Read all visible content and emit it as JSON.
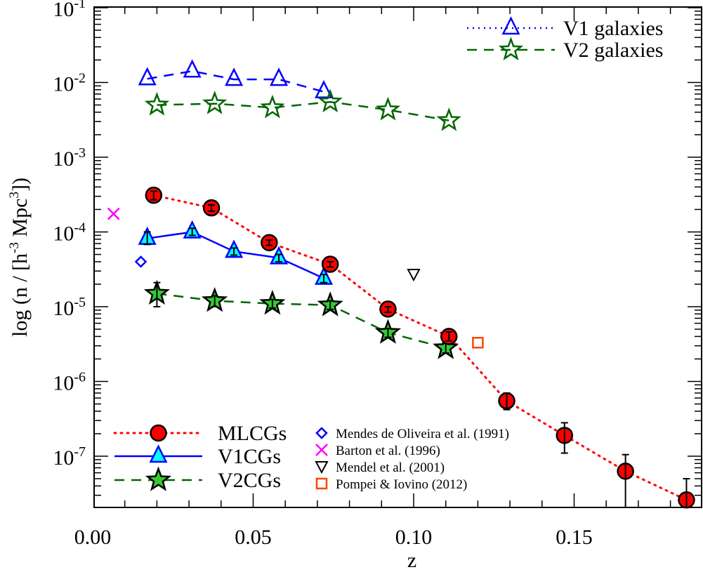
{
  "chart_data": {
    "type": "scatter",
    "title": "",
    "xlabel": "z",
    "ylabel": "log (n / [h",
    "ylabel_parts": [
      "log (n / [h",
      "-3",
      " Mpc",
      "3",
      "])"
    ],
    "xscale": "linear",
    "yscale": "log",
    "xlim": [
      0.0,
      0.19
    ],
    "ylim": [
      2.06e-08,
      0.1
    ],
    "x_ticks": [
      {
        "value": 0.0,
        "label": "0.00"
      },
      {
        "value": 0.05,
        "label": "0.05"
      },
      {
        "value": 0.1,
        "label": "0.10"
      },
      {
        "value": 0.15,
        "label": "0.15"
      }
    ],
    "y_ticks": [
      {
        "value": 0.1,
        "base": "10",
        "exp": "-1"
      },
      {
        "value": 0.01,
        "base": "10",
        "exp": "-2"
      },
      {
        "value": 0.001,
        "base": "10",
        "exp": "-3"
      },
      {
        "value": 0.0001,
        "base": "10",
        "exp": "-4"
      },
      {
        "value": 1e-05,
        "base": "10",
        "exp": "-5"
      },
      {
        "value": 1e-06,
        "base": "10",
        "exp": "-6"
      },
      {
        "value": 1e-07,
        "base": "10",
        "exp": "-7"
      }
    ],
    "grid": false,
    "series": [
      {
        "name": "MLCGs",
        "marker": "circle",
        "line": "dotted",
        "fill": "#ff0000",
        "stroke": "#000000",
        "line_color": "#ff0000",
        "x": [
          0.019,
          0.037,
          0.055,
          0.074,
          0.092,
          0.111,
          0.129,
          0.147,
          0.166,
          0.185
        ],
        "y": [
          0.00031,
          0.00021,
          7.2e-05,
          3.7e-05,
          9.3e-06,
          4e-06,
          5.5e-07,
          1.9e-07,
          6.3e-08,
          2.6e-08
        ],
        "yerr_low": [
          0.00027,
          0.00019,
          6.6e-05,
          3.4e-05,
          8.4e-06,
          3.5e-06,
          4.2e-07,
          1.1e-07,
          2e-08,
          2e-08
        ],
        "yerr_high": [
          0.00035,
          0.00023,
          7.8e-05,
          4e-05,
          1e-05,
          4.6e-06,
          7e-07,
          2.8e-07,
          1.05e-07,
          5e-08
        ]
      },
      {
        "name": "V1CGs",
        "marker": "triangle",
        "line": "solid",
        "fill": "#00ffff",
        "stroke": "#0000ff",
        "line_color": "#0000ff",
        "x": [
          0.017,
          0.031,
          0.044,
          0.058,
          0.072
        ],
        "y": [
          8.2e-05,
          0.0001,
          5.5e-05,
          4.5e-05,
          2.4e-05
        ],
        "yerr_low": [
          6.8e-05,
          9e-05,
          4.9e-05,
          4e-05,
          2.1e-05
        ],
        "yerr_high": [
          0.0001,
          0.000112,
          6.1e-05,
          5e-05,
          2.7e-05
        ]
      },
      {
        "name": "V2CGs",
        "marker": "star",
        "line": "dashed",
        "fill": "#33cc33",
        "stroke": "#000000",
        "line_color": "#006600",
        "x": [
          0.02,
          0.038,
          0.056,
          0.074,
          0.092,
          0.11
        ],
        "y": [
          1.5e-05,
          1.2e-05,
          1.1e-05,
          1.05e-05,
          4.5e-06,
          2.8e-06
        ],
        "yerr_low": [
          1e-05,
          1e-05,
          9.6e-06,
          9.2e-06,
          3.9e-06,
          2.4e-06
        ],
        "yerr_high": [
          2.1e-05,
          1.4e-05,
          1.25e-05,
          1.2e-05,
          5.1e-06,
          3.3e-06
        ]
      },
      {
        "name": "V1 galaxies",
        "marker": "triangle-open",
        "line": "dashed",
        "fill": "none",
        "stroke": "#0000ff",
        "line_color": "#0000ff",
        "x": [
          0.017,
          0.031,
          0.044,
          0.058,
          0.072
        ],
        "y": [
          0.0112,
          0.0142,
          0.011,
          0.011,
          0.0075
        ]
      },
      {
        "name": "V2 galaxies",
        "marker": "star-open",
        "line": "dashed",
        "fill": "none",
        "stroke": "#006600",
        "line_color": "#006600",
        "x": [
          0.02,
          0.038,
          0.056,
          0.074,
          0.092,
          0.111
        ],
        "y": [
          0.005,
          0.0052,
          0.0046,
          0.0055,
          0.0043,
          0.0031
        ]
      },
      {
        "name": "Mendes de Oliveira et al. (1991)",
        "marker": "diamond-open",
        "stroke": "#0000ff",
        "x": [
          0.015
        ],
        "y": [
          4e-05
        ]
      },
      {
        "name": "Barton et al. (1996)",
        "marker": "x",
        "stroke": "#ff00ff",
        "x": [
          0.0065
        ],
        "y": [
          0.000175
        ]
      },
      {
        "name": "Mendel et al. (2001)",
        "marker": "triangle-down-open",
        "stroke": "#000000",
        "x": [
          0.1
        ],
        "y": [
          2.7e-05
        ]
      },
      {
        "name": "Pompei & Iovino (2012)",
        "marker": "square-open",
        "stroke": "#ff4500",
        "x": [
          0.12
        ],
        "y": [
          3.3e-06
        ]
      }
    ],
    "legend_top_right": [
      "V1 galaxies",
      "V2 galaxies"
    ],
    "legend_bottom_left": [
      "MLCGs",
      "V1CGs",
      "V2CGs"
    ],
    "legend_bottom_center": [
      "Mendes de Oliveira et al. (1991)",
      "Barton et al. (1996)",
      "Mendel et al. (2001)",
      "Pompei & Iovino (2012)"
    ]
  }
}
